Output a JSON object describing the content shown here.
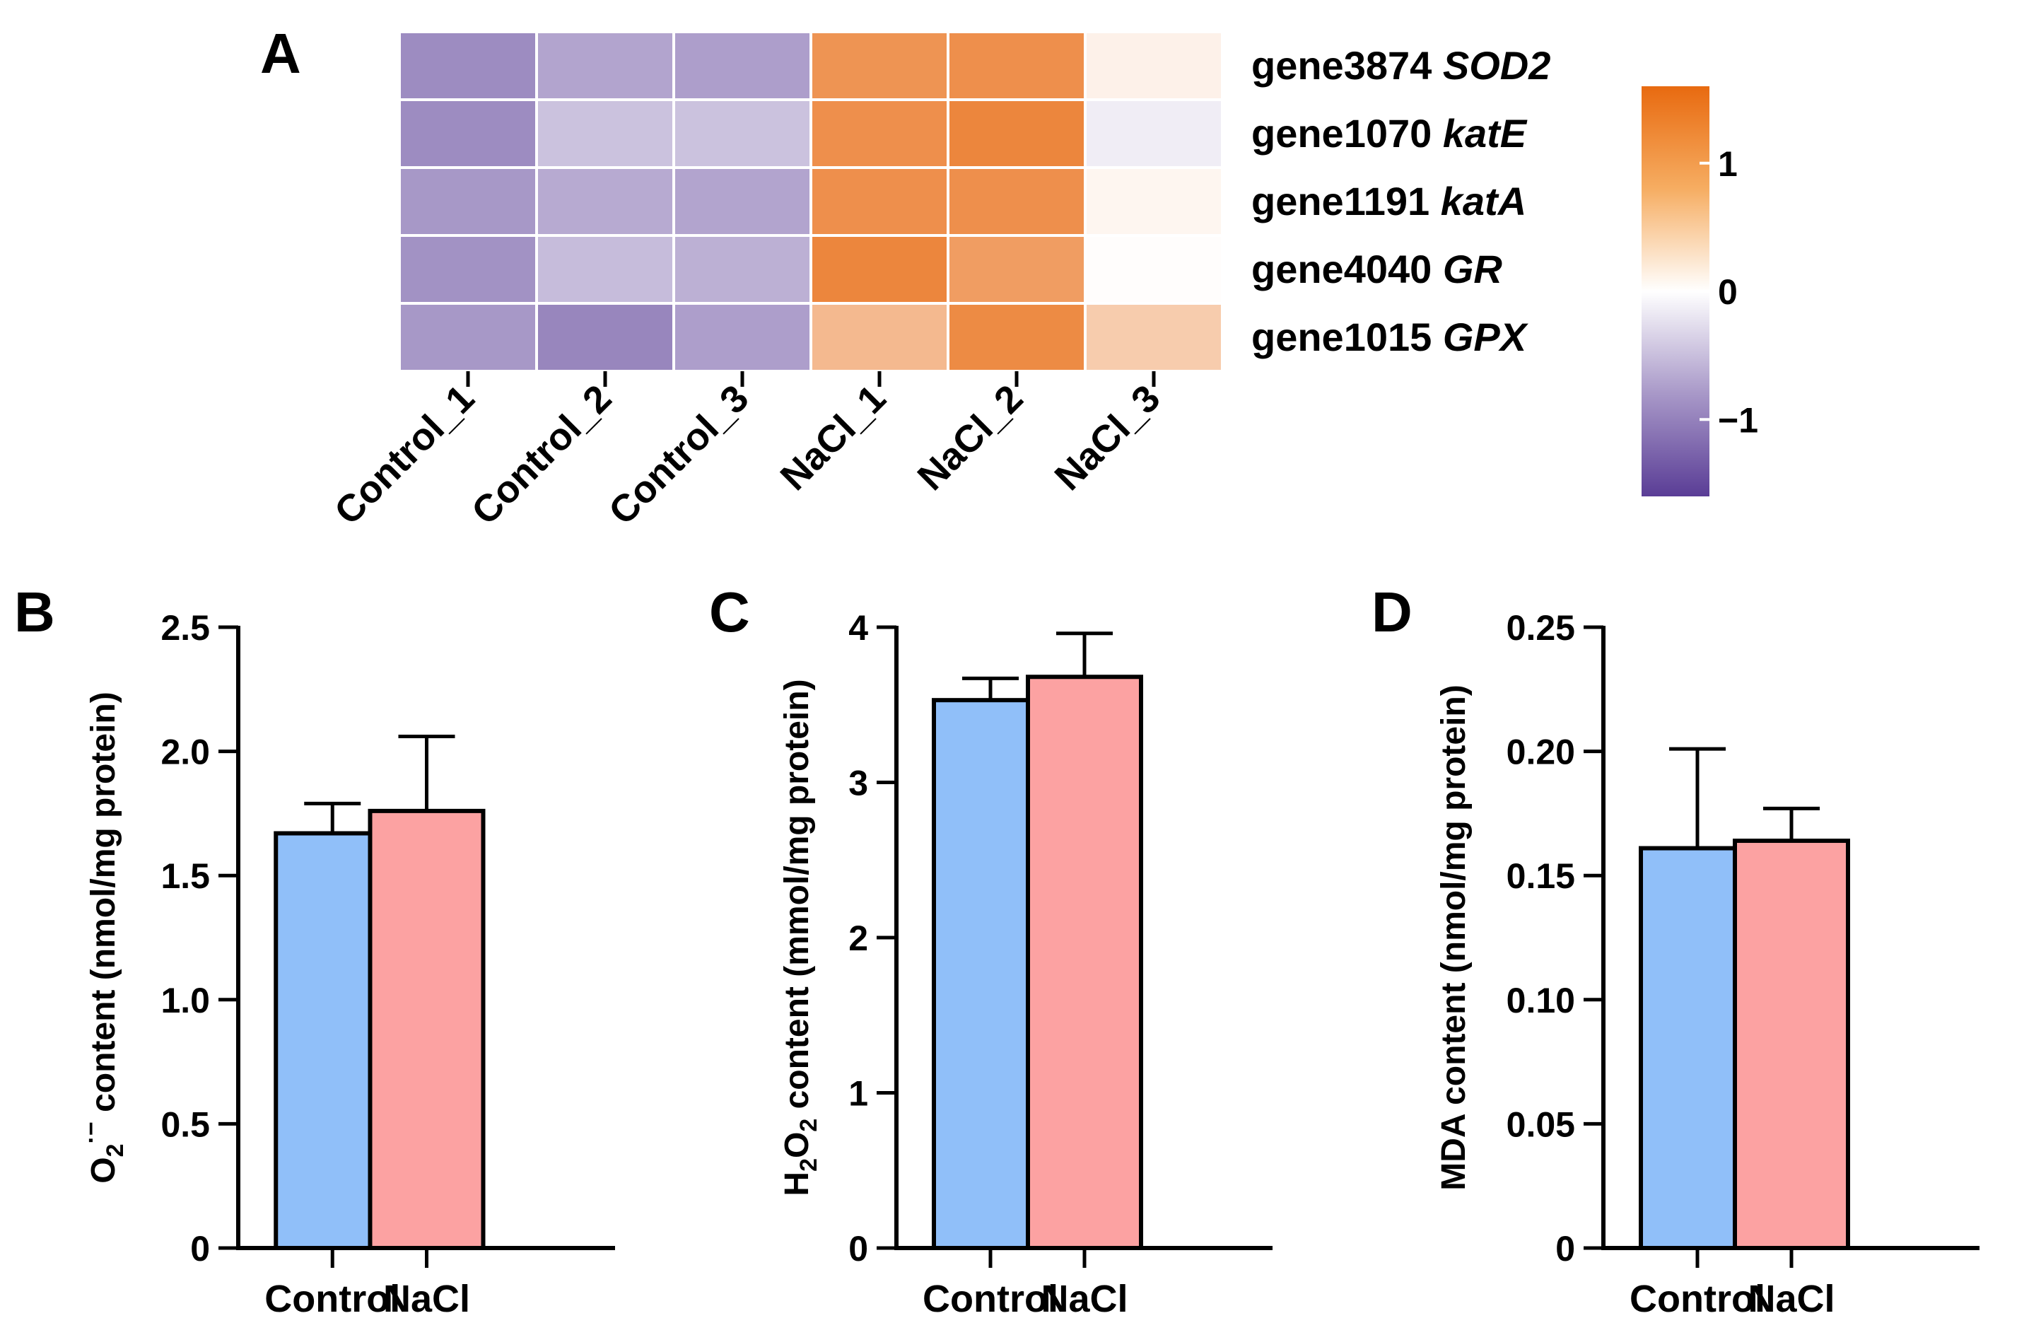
{
  "chart_data": [
    {
      "panel": "A",
      "type": "heatmap",
      "columns": [
        "Control_1",
        "Control_2",
        "Control_3",
        "NaCl_1",
        "NaCl_2",
        "NaCl_3"
      ],
      "rows": [
        {
          "id": "gene3874",
          "name": "SOD2",
          "values": [
            -0.95,
            -0.75,
            -0.8,
            1.15,
            1.2,
            0.15
          ]
        },
        {
          "id": "gene1070",
          "name": "katE",
          "values": [
            -0.95,
            -0.5,
            -0.5,
            1.2,
            1.3,
            -0.15
          ]
        },
        {
          "id": "gene1191",
          "name": "katA",
          "values": [
            -0.85,
            -0.7,
            -0.75,
            1.2,
            1.2,
            0.1
          ]
        },
        {
          "id": "gene4040",
          "name": "GR",
          "values": [
            -0.9,
            -0.55,
            -0.65,
            1.3,
            1.05,
            0.02
          ]
        },
        {
          "id": "gene1015",
          "name": "GPX",
          "values": [
            -0.85,
            -1.0,
            -0.8,
            0.75,
            1.25,
            0.55
          ]
        }
      ],
      "colorbar": {
        "range": [
          -1.6,
          1.6
        ],
        "ticks": [
          1,
          0,
          -1
        ],
        "tick_labels": [
          "1",
          "0",
          "−1"
        ],
        "low_color": "#5a3d96",
        "mid_color": "#ffffff",
        "high_color": "#e86a10"
      }
    },
    {
      "panel": "B",
      "type": "bar",
      "categories": [
        "Control",
        "NaCl"
      ],
      "values": [
        1.67,
        1.76
      ],
      "errors": [
        0.12,
        0.3
      ],
      "colors": [
        "#90bff9",
        "#fca2a2"
      ],
      "ylabel_main": "O",
      "ylabel_sub": "2",
      "ylabel_sup": "·−",
      "ylabel_rest": " content (nmol/mg protein)",
      "ylim": [
        0,
        2.5
      ],
      "ticks": [
        0,
        0.5,
        1.0,
        1.5,
        2.0,
        2.5
      ],
      "tick_labels": [
        "0",
        "0.5",
        "1.0",
        "1.5",
        "2.0",
        "2.5"
      ]
    },
    {
      "panel": "C",
      "type": "bar",
      "categories": [
        "Control",
        "NaCl"
      ],
      "values": [
        3.53,
        3.68
      ],
      "errors": [
        0.14,
        0.28
      ],
      "colors": [
        "#90bff9",
        "#fca2a2"
      ],
      "ylabel_main": "H",
      "ylabel_sub": "2",
      "ylabel_mid": "O",
      "ylabel_sub2": "2",
      "ylabel_rest": " content (mmol/mg protein)",
      "ylim": [
        0,
        4
      ],
      "ticks": [
        0,
        1,
        2,
        3,
        4
      ],
      "tick_labels": [
        "0",
        "1",
        "2",
        "3",
        "4"
      ]
    },
    {
      "panel": "D",
      "type": "bar",
      "categories": [
        "Control",
        "NaCl"
      ],
      "values": [
        0.161,
        0.164
      ],
      "errors": [
        0.04,
        0.013
      ],
      "colors": [
        "#90bff9",
        "#fca2a2"
      ],
      "ylabel_rest": "MDA content (nmol/mg protein)",
      "ylim": [
        0,
        0.25
      ],
      "ticks": [
        0,
        0.05,
        0.1,
        0.15,
        0.2,
        0.25
      ],
      "tick_labels": [
        "0",
        "0.05",
        "0.10",
        "0.15",
        "0.20",
        "0.25"
      ]
    }
  ]
}
